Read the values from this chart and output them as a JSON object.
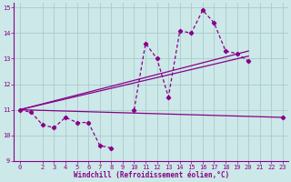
{
  "xlabel": "Windchill (Refroidissement éolien,°C)",
  "bg_color": "#cce8e8",
  "grid_color": "#aacccc",
  "line_color": "#880088",
  "hours": [
    0,
    1,
    2,
    3,
    4,
    5,
    6,
    7,
    8,
    9,
    10,
    11,
    12,
    13,
    14,
    15,
    16,
    17,
    18,
    19,
    20,
    21,
    22,
    23
  ],
  "temp": [
    11.0,
    10.9,
    10.4,
    10.3,
    10.7,
    10.5,
    10.5,
    9.6,
    9.5,
    null,
    11.0,
    13.6,
    13.0,
    11.5,
    14.1,
    14.0,
    14.9,
    14.4,
    13.3,
    13.2,
    12.9,
    null,
    null,
    10.7
  ],
  "tri_line1_x": [
    0,
    23
  ],
  "tri_line1_y": [
    11.0,
    10.7
  ],
  "tri_line2_x": [
    0,
    20
  ],
  "tri_line2_y": [
    11.0,
    13.3
  ],
  "tri_line3_x": [
    0,
    20
  ],
  "tri_line3_y": [
    11.0,
    13.1
  ],
  "ylim": [
    9.0,
    15.2
  ],
  "xlim": [
    -0.5,
    23.5
  ],
  "yticks": [
    9,
    10,
    11,
    12,
    13,
    14,
    15
  ],
  "xticks": [
    0,
    2,
    3,
    4,
    5,
    6,
    7,
    8,
    9,
    10,
    11,
    12,
    13,
    14,
    15,
    16,
    17,
    18,
    19,
    20,
    21,
    22,
    23
  ]
}
